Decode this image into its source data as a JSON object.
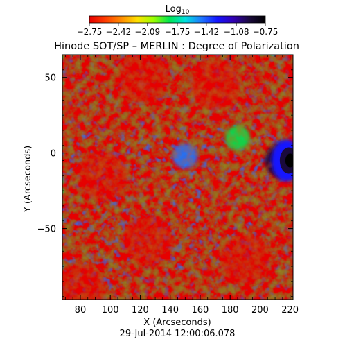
{
  "chart_data": {
    "type": "heatmap",
    "title": "Hinode SOT/SP – MERLIN : Degree of Polarization",
    "xlabel": "X (Arcseconds)",
    "ylabel": "Y (Arcseconds)",
    "timestamp": "29-Jul-2014 12:00:06.078",
    "xlim": [
      68,
      222
    ],
    "ylim": [
      -97,
      65
    ],
    "x_ticks": [
      80,
      100,
      120,
      140,
      160,
      180,
      200,
      220
    ],
    "x_tick_labels": [
      "80",
      "100",
      "120",
      "140",
      "160",
      "180",
      "200",
      "220"
    ],
    "y_ticks": [
      50,
      0,
      -50
    ],
    "y_tick_labels": [
      "50",
      "0",
      "−50"
    ],
    "colorbar": {
      "label_main": "Log",
      "label_sub": "10",
      "range": [
        -2.75,
        -0.75
      ],
      "ticks": [
        -2.75,
        -2.42,
        -2.09,
        -1.75,
        -1.42,
        -1.08,
        -0.75
      ],
      "tick_labels": [
        "−2.75",
        "−2.42",
        "−2.09",
        "−1.75",
        "−1.42",
        "−1.08",
        "−0.75"
      ],
      "colors": [
        "#e60000",
        "#ff3c00",
        "#ff8c00",
        "#ffe000",
        "#9cff00",
        "#00e650",
        "#00e0e0",
        "#1e78ff",
        "#1414ff",
        "#3200b4",
        "#1a0a3c",
        "#000000"
      ]
    },
    "regions": [
      {
        "x": 122,
        "y": 50,
        "value": -2.75
      },
      {
        "x": 170,
        "y": 45,
        "value": -2.72
      },
      {
        "x": 95,
        "y": -15,
        "value": -2.7
      },
      {
        "x": 125,
        "y": -58,
        "value": -2.74
      },
      {
        "x": 190,
        "y": -70,
        "value": -2.7
      },
      {
        "x": 80,
        "y": -90,
        "value": -2.72
      },
      {
        "x": 150,
        "y": -2,
        "value": -1.55
      },
      {
        "x": 185,
        "y": 10,
        "value": -1.85
      },
      {
        "x": 215,
        "y": -5,
        "value": -0.9
      },
      {
        "x": 215,
        "y": -5,
        "value": -0.75
      }
    ]
  }
}
